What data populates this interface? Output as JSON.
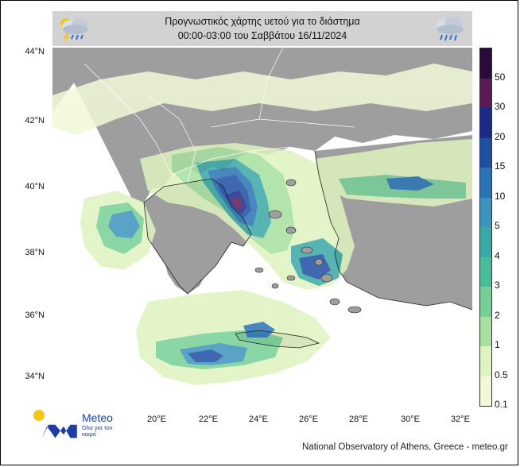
{
  "title": {
    "line1": "Προγνωστικός χάρτης υετού για το διάστημα",
    "line2": "00:00-03:00 του Σαββάτου 16/11/2024"
  },
  "header_icons": {
    "left": "cloud-rain-lightning-icon",
    "right": "cloud-rain-icon"
  },
  "lat_labels": [
    "44°N",
    "42°N",
    "40°N",
    "38°N",
    "36°N",
    "34°N"
  ],
  "lon_labels": [
    "20°E",
    "22°E",
    "24°E",
    "26°E",
    "28°E",
    "30°E",
    "32°E"
  ],
  "legend": {
    "labels": [
      "50",
      "30",
      "20",
      "15",
      "10",
      "5",
      "4",
      "3",
      "2",
      "1",
      "0.5",
      "0.1"
    ],
    "colors": [
      "#2a0a3a",
      "#5a1b55",
      "#1c2b8a",
      "#1f4ea3",
      "#2a73b5",
      "#3b94bd",
      "#3aa8a6",
      "#4cbb9a",
      "#76cf96",
      "#a8e0a0",
      "#dff3c0",
      "#f2f9d8"
    ]
  },
  "colors": {
    "land": "#9e9e9e",
    "sea": "#ffffff",
    "header_bg": "#d2d2d2"
  },
  "logo": {
    "name": "Meteo",
    "tagline": "Όλα για τον καιρό"
  },
  "credit": "National Observatory of Athens, Greece - meteo.gr"
}
